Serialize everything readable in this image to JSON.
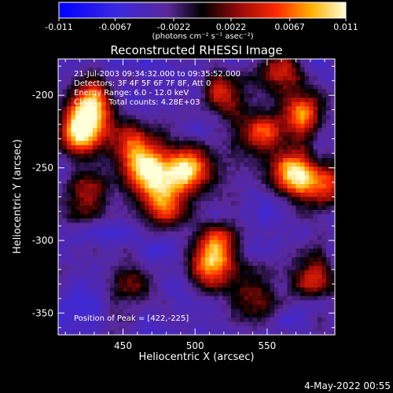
{
  "colorbar": {
    "ticks": [
      "-0.011",
      "-0.0067",
      "-0.0022",
      "0.0022",
      "0.0067",
      "0.011"
    ],
    "units": "(photons cm⁻² s⁻¹ asec⁻²)",
    "range": [
      -0.011,
      0.011
    ]
  },
  "footer": {
    "date": "4-May-2022 00:55"
  },
  "chart_data": {
    "type": "heatmap",
    "title": "Reconstructed RHESSI Image",
    "xlabel": "Heliocentric X (arcsec)",
    "ylabel": "Heliocentric Y (arcsec)",
    "xlim": [
      405,
      597
    ],
    "ylim": [
      -365,
      -175
    ],
    "xticks": [
      450,
      500,
      550
    ],
    "yticks": [
      -200,
      -250,
      -300,
      -350
    ],
    "annotations": [
      "21-Jul-2003 09:34:32.000 to 09:35:52.000",
      "Detectors: 3F 4F 5F 6F 7F 8F, Att 0",
      "Energy Range: 6.0 - 12.0 keV",
      "Clean     Total counts: 4.28E+03"
    ],
    "peak_label": "Position of Peak = [422,-225]",
    "peak": [
      422,
      -225
    ],
    "colorscale": "RHESSI colorbar: blue-violet (negative) through black and red to yellow-white (positive)",
    "sources": [
      {
        "x": 422,
        "y": -225,
        "amp": 0.011
      },
      {
        "x": 428,
        "y": -205,
        "amp": 0.0075
      },
      {
        "x": 470,
        "y": -255,
        "amp": 0.01
      },
      {
        "x": 495,
        "y": -250,
        "amp": 0.0095
      },
      {
        "x": 460,
        "y": -235,
        "amp": 0.006
      },
      {
        "x": 480,
        "y": -275,
        "amp": 0.006
      },
      {
        "x": 568,
        "y": -255,
        "amp": 0.01
      },
      {
        "x": 575,
        "y": -212,
        "amp": 0.007
      },
      {
        "x": 545,
        "y": -225,
        "amp": 0.006
      },
      {
        "x": 515,
        "y": -305,
        "amp": 0.0065
      },
      {
        "x": 510,
        "y": -320,
        "amp": 0.0045
      },
      {
        "x": 580,
        "y": -325,
        "amp": 0.004
      },
      {
        "x": 455,
        "y": -330,
        "amp": 0.0035
      },
      {
        "x": 540,
        "y": -340,
        "amp": 0.003
      },
      {
        "x": 425,
        "y": -270,
        "amp": 0.004
      },
      {
        "x": 520,
        "y": -200,
        "amp": 0.004
      },
      {
        "x": 560,
        "y": -180,
        "amp": 0.0045
      },
      {
        "x": 590,
        "y": -260,
        "amp": 0.005
      }
    ]
  }
}
